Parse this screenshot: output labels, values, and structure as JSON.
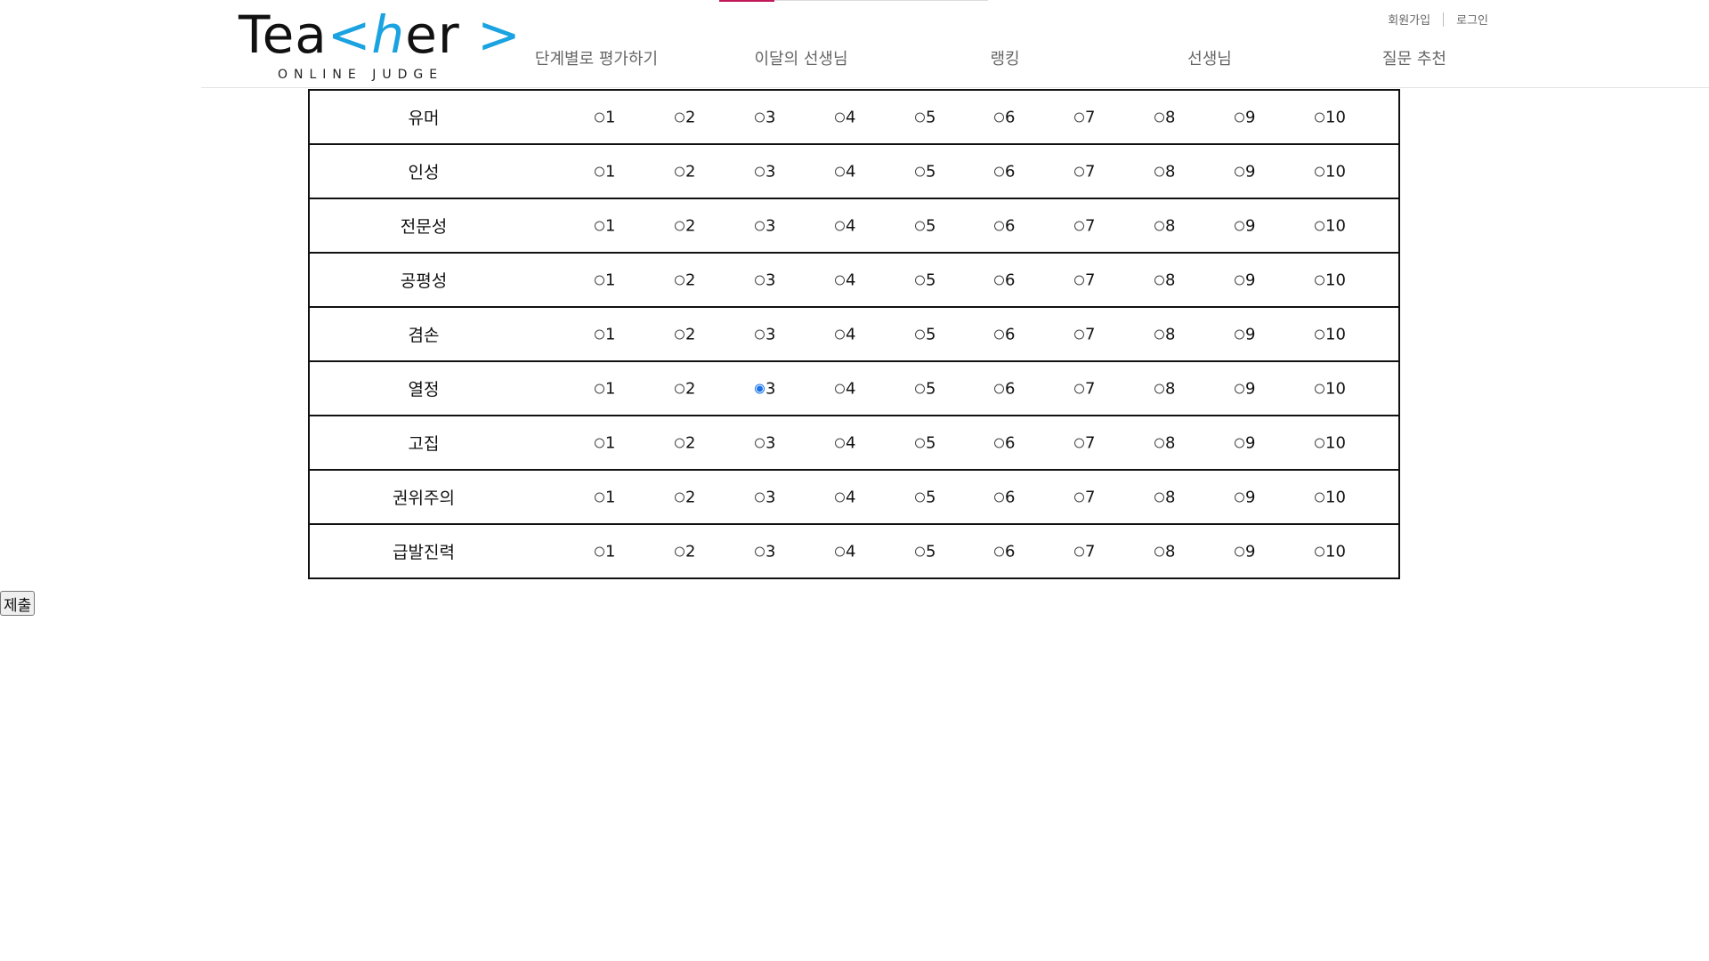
{
  "header": {
    "logo": {
      "part1": "Tea",
      "bracket_open": "<",
      "letter_h": "h",
      "part2": "er",
      "bracket_close": ">",
      "subtitle": "ONLINE JUDGE"
    },
    "nav": [
      {
        "label": "단계별로 평가하기"
      },
      {
        "label": "이달의 선생님"
      },
      {
        "label": "랭킹"
      },
      {
        "label": "선생님"
      },
      {
        "label": "질문 추천"
      }
    ],
    "auth": {
      "signup": "회원가입",
      "login": "로그인"
    }
  },
  "rating": {
    "criteria": [
      {
        "name": "유머",
        "selected": null
      },
      {
        "name": "인성",
        "selected": null
      },
      {
        "name": "전문성",
        "selected": null
      },
      {
        "name": "공평성",
        "selected": null
      },
      {
        "name": "겸손",
        "selected": null
      },
      {
        "name": "열정",
        "selected": 3
      },
      {
        "name": "고집",
        "selected": null
      },
      {
        "name": "권위주의",
        "selected": null
      },
      {
        "name": "급발진력",
        "selected": null
      }
    ],
    "scale": [
      "1",
      "2",
      "3",
      "4",
      "5",
      "6",
      "7",
      "8",
      "9",
      "10"
    ]
  },
  "submit_label": "제출",
  "colors": {
    "accent_blue": "#1aa3e0",
    "radio_checked": "#1a73e8",
    "active_tab": "#c0185a"
  }
}
